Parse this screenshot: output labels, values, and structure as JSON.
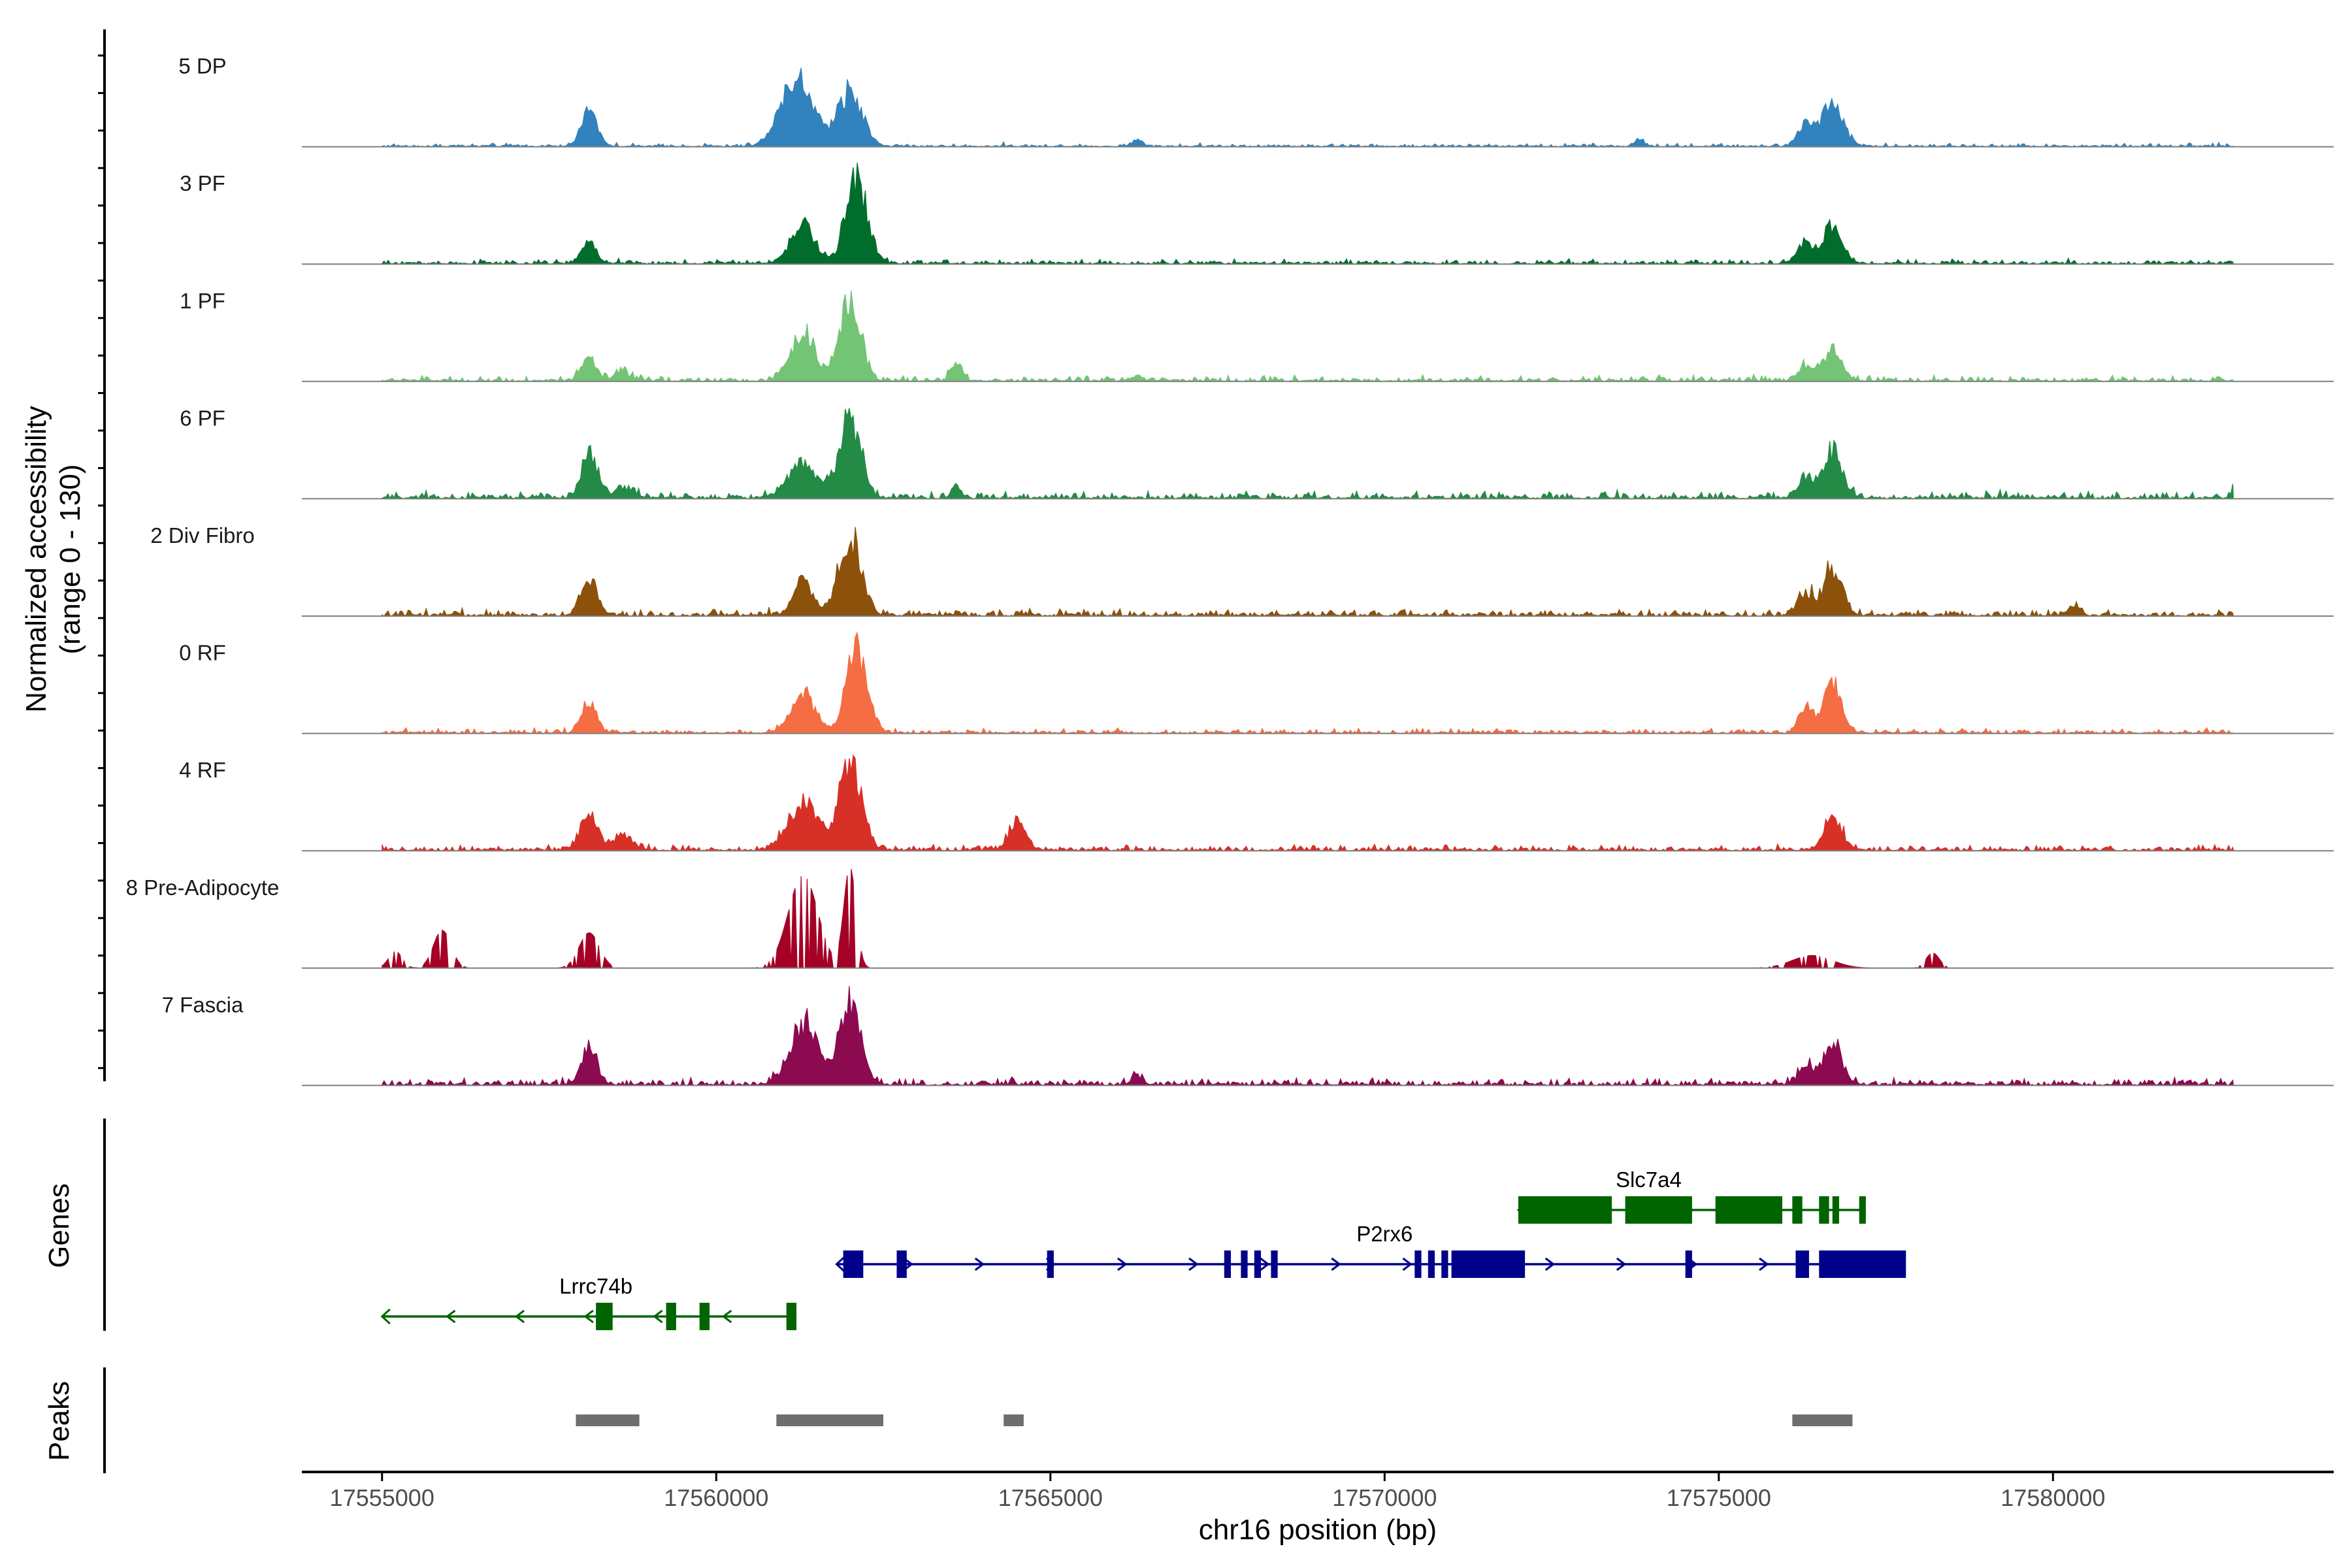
{
  "chart_data": {
    "type": "area",
    "title": "",
    "xlabel": "chr16 position (bp)",
    "ylabel_line1": "Normalized accessibility",
    "ylabel_line2": "(range 0 - 130)",
    "genes_label": "Genes",
    "peaks_label": "Peaks",
    "xlim": [
      17553800,
      17584200
    ],
    "ylim": [
      0,
      130
    ],
    "xticks": [
      17555000,
      17560000,
      17565000,
      17570000,
      17575000,
      17580000
    ],
    "xtick_labels": [
      "17555000",
      "17560000",
      "17565000",
      "17570000",
      "17575000",
      "17580000"
    ],
    "track_range": [
      17555000,
      17582700
    ],
    "tracks": [
      {
        "name": "5 DP",
        "color": "#3182bd",
        "noise": 3,
        "peaks": [
          [
            17558100,
            45,
            120
          ],
          [
            17561200,
            82,
            230
          ],
          [
            17562000,
            65,
            180
          ],
          [
            17576700,
            50,
            160
          ],
          [
            17576300,
            25,
            120
          ],
          [
            17566300,
            8,
            80
          ],
          [
            17573800,
            10,
            60
          ]
        ]
      },
      {
        "name": "3 PF",
        "color": "#006d2c",
        "noise": 4,
        "peaks": [
          [
            17558100,
            25,
            110
          ],
          [
            17561300,
            45,
            180
          ],
          [
            17562100,
            100,
            160
          ],
          [
            17576700,
            42,
            140
          ],
          [
            17576300,
            25,
            120
          ]
        ]
      },
      {
        "name": "1 PF",
        "color": "#74c476",
        "noise": 5,
        "peaks": [
          [
            17558100,
            25,
            110
          ],
          [
            17558600,
            10,
            120
          ],
          [
            17561300,
            55,
            180
          ],
          [
            17562000,
            105,
            150
          ],
          [
            17563600,
            22,
            80
          ],
          [
            17576700,
            35,
            140
          ],
          [
            17576300,
            15,
            120
          ],
          [
            17566300,
            6,
            80
          ]
        ]
      },
      {
        "name": "6 PF",
        "color": "#238b45",
        "noise": 6,
        "peaks": [
          [
            17558100,
            50,
            120
          ],
          [
            17558600,
            12,
            150
          ],
          [
            17561300,
            40,
            220
          ],
          [
            17562000,
            95,
            160
          ],
          [
            17563600,
            10,
            80
          ],
          [
            17576700,
            55,
            140
          ],
          [
            17576300,
            25,
            120
          ],
          [
            17582700,
            8,
            60
          ]
        ]
      },
      {
        "name": "2 Div Fibro",
        "color": "#8c510a",
        "noise": 6,
        "peaks": [
          [
            17558100,
            45,
            120
          ],
          [
            17561300,
            45,
            130
          ],
          [
            17562000,
            90,
            170
          ],
          [
            17576700,
            55,
            140
          ],
          [
            17576300,
            25,
            120
          ],
          [
            17580300,
            10,
            80
          ]
        ]
      },
      {
        "name": "0 RF",
        "color": "#f46d43",
        "noise": 4,
        "peaks": [
          [
            17558100,
            35,
            110
          ],
          [
            17561300,
            45,
            180
          ],
          [
            17562100,
            95,
            160
          ],
          [
            17576700,
            55,
            140
          ],
          [
            17576300,
            32,
            100
          ]
        ]
      },
      {
        "name": "4 RF",
        "color": "#d73027",
        "noise": 5,
        "peaks": [
          [
            17558100,
            40,
            130
          ],
          [
            17558600,
            18,
            150
          ],
          [
            17561300,
            55,
            220
          ],
          [
            17562000,
            100,
            170
          ],
          [
            17564500,
            32,
            120
          ],
          [
            17576700,
            42,
            130
          ]
        ]
      },
      {
        "name": "8 Pre-Adipocyte",
        "color": "#a50026",
        "noise": 0,
        "peaks": [
          [
            17555200,
            20,
            100
          ],
          [
            17555900,
            45,
            130
          ],
          [
            17558100,
            42,
            150
          ],
          [
            17561300,
            110,
            220
          ],
          [
            17562000,
            120,
            90
          ],
          [
            17576400,
            15,
            300
          ],
          [
            17578200,
            18,
            100
          ]
        ]
      },
      {
        "name": "7 Fascia",
        "color": "#8b0a50",
        "noise": 6,
        "peaks": [
          [
            17558100,
            40,
            120
          ],
          [
            17561300,
            75,
            200
          ],
          [
            17562000,
            95,
            160
          ],
          [
            17576700,
            45,
            140
          ],
          [
            17576300,
            20,
            120
          ],
          [
            17566300,
            12,
            80
          ]
        ]
      }
    ],
    "genes": [
      {
        "name": "Lrrc74b",
        "strand": "-",
        "color": "#006400",
        "row": 3,
        "start": 17555000,
        "end": 17561200,
        "label_x": 17558200,
        "exons": [
          [
            17558200,
            17558450
          ],
          [
            17559250,
            17559400
          ],
          [
            17559750,
            17559900
          ],
          [
            17561050,
            17561200
          ]
        ]
      },
      {
        "name": "P2rx6",
        "strand": "+",
        "color": "#00008b",
        "row": 2,
        "start": 17561800,
        "end": 17577800,
        "label_x": 17570000,
        "exons": [
          [
            17561900,
            17562200
          ],
          [
            17562700,
            17562850
          ],
          [
            17564950,
            17565050
          ],
          [
            17567600,
            17567700
          ],
          [
            17567850,
            17567950
          ],
          [
            17568050,
            17568150
          ],
          [
            17568300,
            17568400
          ],
          [
            17570450,
            17570550
          ],
          [
            17570650,
            17570750
          ],
          [
            17570850,
            17570950
          ],
          [
            17571000,
            17572100
          ],
          [
            17574500,
            17574600
          ],
          [
            17576150,
            17576350
          ],
          [
            17576500,
            17577800
          ]
        ]
      },
      {
        "name": "Slc7a4",
        "strand": "-",
        "color": "#006400",
        "row": 1,
        "start": 17572000,
        "end": 17577200,
        "label_x": 17573950,
        "exons": [
          [
            17572000,
            17573400
          ],
          [
            17573600,
            17574600
          ],
          [
            17574950,
            17575950
          ],
          [
            17576100,
            17576250
          ],
          [
            17576500,
            17576650
          ],
          [
            17576700,
            17576800
          ],
          [
            17577100,
            17577200
          ]
        ]
      }
    ],
    "peaks": [
      [
        17557900,
        17558850
      ],
      [
        17560900,
        17562500
      ],
      [
        17564300,
        17564600
      ],
      [
        17576100,
        17577000
      ]
    ]
  }
}
